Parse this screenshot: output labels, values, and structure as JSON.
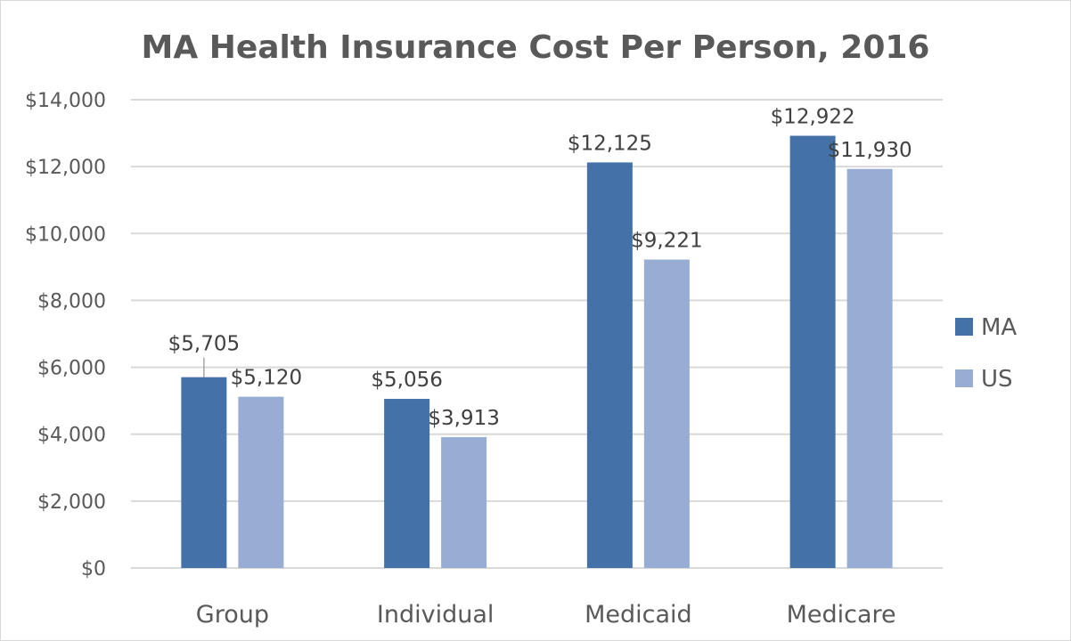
{
  "chart_data": {
    "type": "bar",
    "title": "MA Health Insurance Cost Per Person, 2016",
    "xlabel": "",
    "ylabel": "",
    "categories": [
      "Group",
      "Individual",
      "Medicaid",
      "Medicare"
    ],
    "series": [
      {
        "name": "MA",
        "values": [
          5705,
          5056,
          12125,
          12922
        ],
        "color": "#4472A8"
      },
      {
        "name": "US",
        "values": [
          5120,
          3913,
          9221,
          11930
        ],
        "color": "#97ADD3"
      }
    ],
    "data_labels": [
      [
        "$5,705",
        "$5,056",
        "$12,125",
        "$12,922"
      ],
      [
        "$5,120",
        "$3,913",
        "$9,221",
        "$11,930"
      ]
    ],
    "ylim": [
      0,
      14000
    ],
    "yticks": [
      0,
      2000,
      4000,
      6000,
      8000,
      10000,
      12000,
      14000
    ],
    "ytick_labels": [
      "$0",
      "$2,000",
      "$4,000",
      "$6,000",
      "$8,000",
      "$10,000",
      "$12,000",
      "$14,000"
    ],
    "grid": true,
    "legend_position": "right",
    "gridline_color": "#d9d9d9"
  }
}
